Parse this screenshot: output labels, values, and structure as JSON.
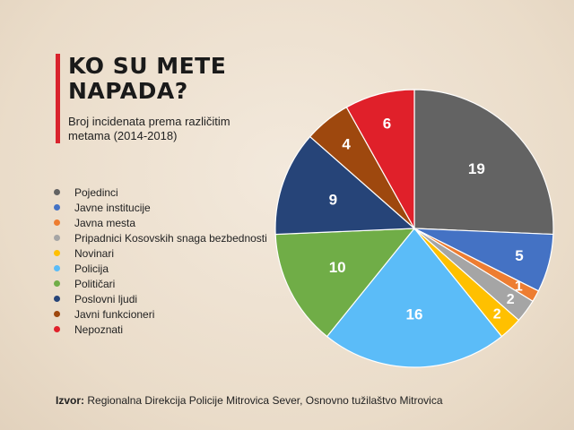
{
  "title": "KO SU METE\nNAPADA?",
  "subtitle": "Broj incidenata prema različitim metama (2014-2018)",
  "source": {
    "label": "Izvor:",
    "text": "Regionalna Direkcija Policije Mitrovica Sever, Osnovno tužilaštvo Mitrovica"
  },
  "chart_data": {
    "type": "pie",
    "title": "KO SU METE NAPADA?",
    "subtitle": "Broj incidenata prema različitim metama (2014-2018)",
    "legend_position": "left",
    "slices": [
      {
        "label": "Pojedinci",
        "value": 19,
        "color": "#636363"
      },
      {
        "label": "Javne institucije",
        "value": 5,
        "color": "#4472c4"
      },
      {
        "label": "Javna mesta",
        "value": 1,
        "color": "#ed7d31"
      },
      {
        "label": "Pripadnici Kosovskih snaga bezbednosti",
        "value": 2,
        "color": "#a5a5a5"
      },
      {
        "label": "Novinari",
        "value": 2,
        "color": "#ffc000"
      },
      {
        "label": "Policija",
        "value": 16,
        "color": "#5bbcf8"
      },
      {
        "label": "Političari",
        "value": 10,
        "color": "#70ad47"
      },
      {
        "label": "Poslovni ljudi",
        "value": 9,
        "color": "#264478"
      },
      {
        "label": "Javni funkcioneri",
        "value": 4,
        "color": "#9e480e"
      },
      {
        "label": "Nepoznati",
        "value": 6,
        "color": "#e0202a"
      }
    ]
  }
}
